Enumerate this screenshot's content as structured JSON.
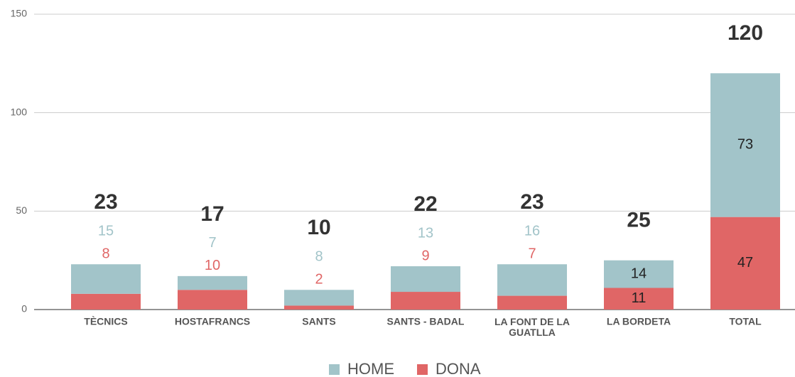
{
  "chart_data": {
    "type": "stacked_bar",
    "categories": [
      "TÈCNICS",
      "HOSTAFRANCS",
      "SANTS",
      "SANTS - BADAL",
      "LA FONT DE LA GUATLLA",
      "LA BORDETA",
      "TOTAL"
    ],
    "series": [
      {
        "name": "DONA",
        "color": "#e06666",
        "values": [
          8,
          10,
          2,
          9,
          7,
          11,
          47
        ]
      },
      {
        "name": "HOME",
        "color": "#a2c4c9",
        "values": [
          15,
          7,
          8,
          13,
          16,
          14,
          73
        ]
      }
    ],
    "totals": [
      23,
      17,
      10,
      22,
      23,
      25,
      120
    ],
    "ylim": [
      0,
      150
    ],
    "yticks": [
      0,
      50,
      100,
      150
    ],
    "grid": true,
    "legend": "bottom"
  }
}
